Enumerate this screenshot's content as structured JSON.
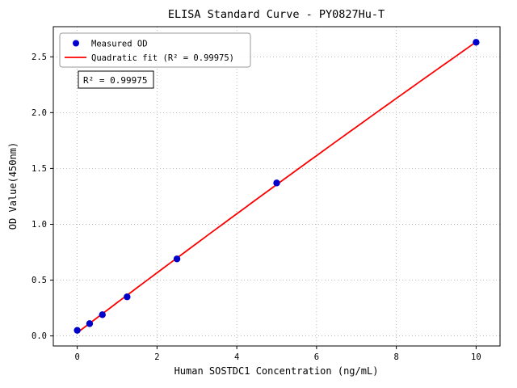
{
  "figure": {
    "background": "#ffffff"
  },
  "chart_data": {
    "type": "scatter",
    "title": "ELISA Standard Curve - PY0827Hu-T",
    "xlabel": "Human SOSTDC1 Concentration (ng/mL)",
    "ylabel": "OD Value(450nm)",
    "xlim": [
      -0.6,
      10.6
    ],
    "ylim": [
      -0.09,
      2.77
    ],
    "xticks": [
      0,
      2,
      4,
      6,
      8,
      10
    ],
    "yticks": [
      0.0,
      0.5,
      1.0,
      1.5,
      2.0,
      2.5
    ],
    "grid": true,
    "legend": {
      "position": "upper-left",
      "entries": [
        {
          "label": "Measured OD",
          "marker": "dot",
          "color": "#0000cd"
        },
        {
          "label": "Quadratic fit (R² = 0.99975)",
          "marker": "line",
          "color": "#ff0000"
        }
      ]
    },
    "series": [
      {
        "name": "Measured OD",
        "type": "scatter",
        "color": "#0000cd",
        "x": [
          0,
          0.31,
          0.63,
          1.25,
          2.5,
          5,
          10
        ],
        "y": [
          0.05,
          0.11,
          0.19,
          0.35,
          0.69,
          1.37,
          2.63
        ]
      },
      {
        "name": "Quadratic fit",
        "type": "fit-line",
        "fit": "quadratic",
        "color": "#ff0000",
        "r_squared": "0.99975"
      }
    ],
    "annotation": {
      "text": "R² = 0.99975"
    },
    "colors": {
      "grid": "#aaaaaa",
      "axis": "#000000"
    }
  }
}
